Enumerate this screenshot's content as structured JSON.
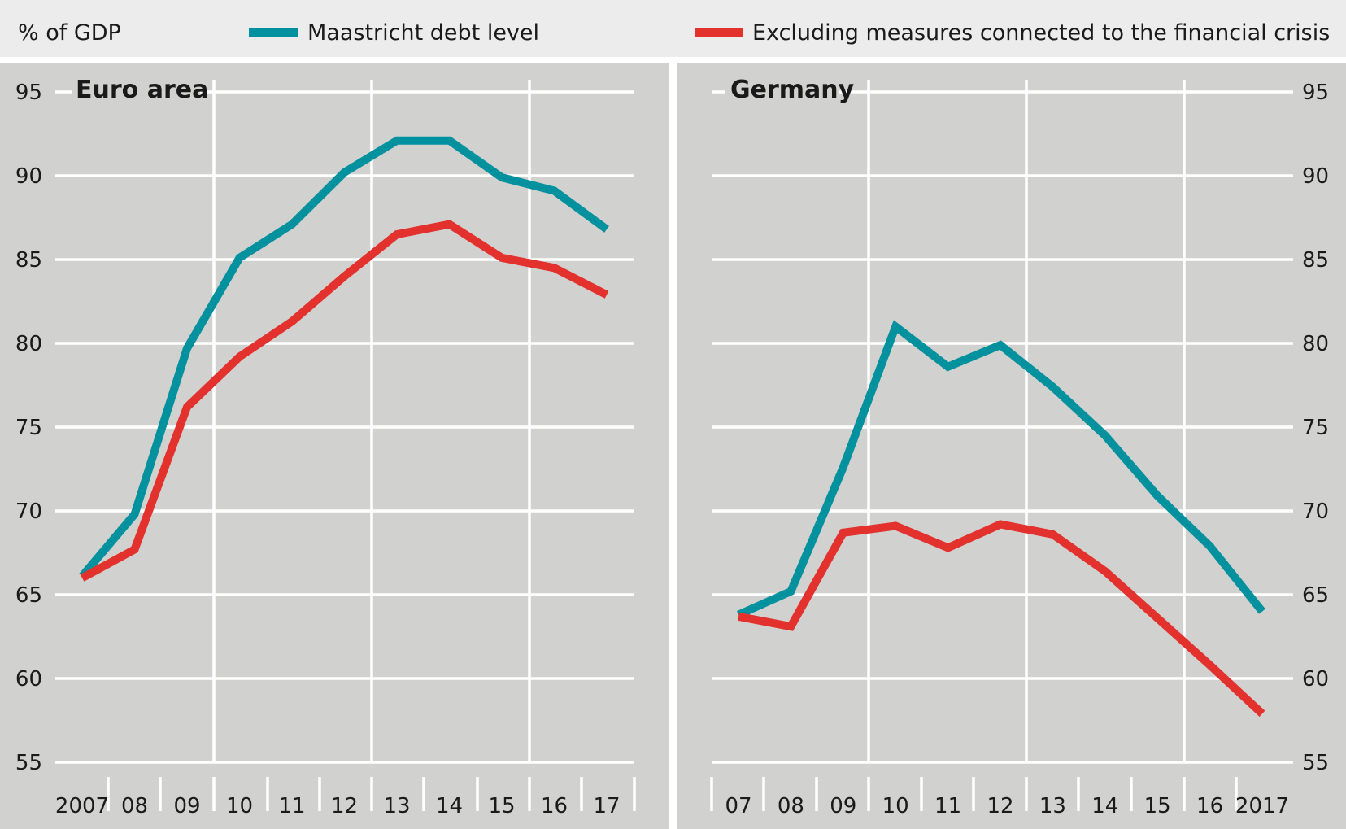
{
  "header": {
    "unit_label": "% of GDP",
    "legend": [
      {
        "label": "Maastricht debt level",
        "color": "#00919e"
      },
      {
        "label": "Excluding measures connected to the financial crisis",
        "color": "#e3312d"
      }
    ]
  },
  "colors": {
    "header_bg": "#ececec",
    "panel_bg": "#d1d1d0",
    "grid": "#ffffff",
    "teal": "#00919e",
    "red": "#e3312d"
  },
  "chart_data": [
    {
      "type": "line",
      "title": "Euro area",
      "x_tick_labels": [
        "2007",
        "08",
        "09",
        "10",
        "11",
        "12",
        "13",
        "14",
        "15",
        "16",
        "17"
      ],
      "x": [
        2007,
        2008,
        2009,
        2010,
        2011,
        2012,
        2013,
        2014,
        2015,
        2016,
        2017
      ],
      "ylim": [
        55,
        95
      ],
      "y_ticks": [
        55,
        60,
        65,
        70,
        75,
        80,
        85,
        90,
        95
      ],
      "y_axis_side": "left",
      "grid": true,
      "series": [
        {
          "name": "Maastricht debt level",
          "color": "#00919e",
          "values": [
            66.1,
            69.8,
            79.7,
            85.1,
            87.1,
            90.2,
            92.1,
            92.1,
            89.9,
            89.1,
            86.8
          ]
        },
        {
          "name": "Excluding measures connected to the financial crisis",
          "color": "#e3312d",
          "values": [
            66.0,
            67.7,
            76.2,
            79.2,
            81.3,
            84.0,
            86.5,
            87.1,
            85.1,
            84.5,
            82.9
          ]
        }
      ]
    },
    {
      "type": "line",
      "title": "Germany",
      "x_tick_labels": [
        "07",
        "08",
        "09",
        "10",
        "11",
        "12",
        "13",
        "14",
        "15",
        "16",
        "2017"
      ],
      "x": [
        2007,
        2008,
        2009,
        2010,
        2011,
        2012,
        2013,
        2014,
        2015,
        2016,
        2017
      ],
      "ylim": [
        55,
        95
      ],
      "y_ticks": [
        55,
        60,
        65,
        70,
        75,
        80,
        85,
        90,
        95
      ],
      "y_axis_side": "right",
      "grid": true,
      "series": [
        {
          "name": "Maastricht debt level",
          "color": "#00919e",
          "values": [
            63.8,
            65.2,
            72.6,
            81.0,
            78.6,
            79.9,
            77.4,
            74.5,
            70.9,
            67.9,
            64.0
          ]
        },
        {
          "name": "Excluding measures connected to the financial crisis",
          "color": "#e3312d",
          "values": [
            63.7,
            63.1,
            68.7,
            69.1,
            67.8,
            69.2,
            68.6,
            66.4,
            63.6,
            60.8,
            57.9
          ]
        }
      ]
    }
  ]
}
